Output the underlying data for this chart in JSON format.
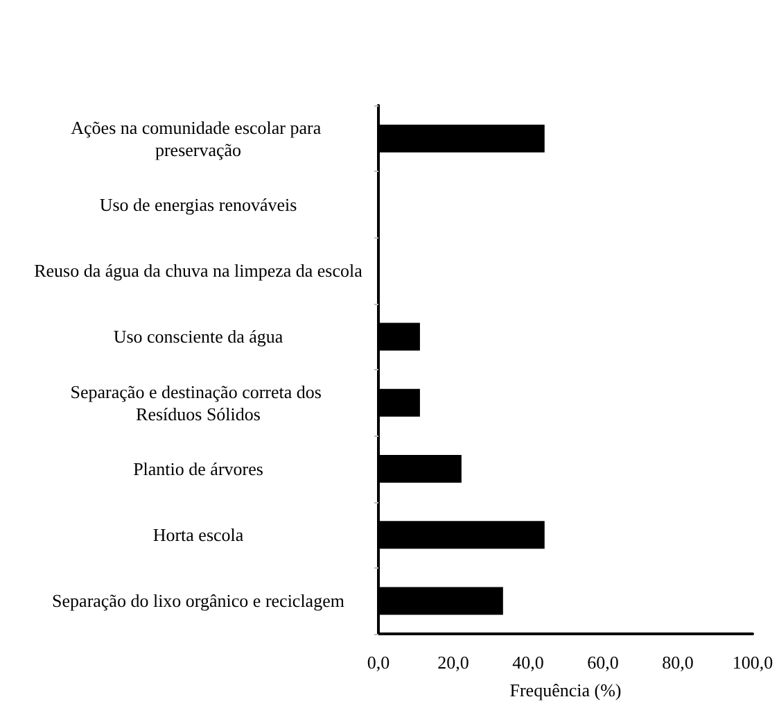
{
  "chart_data": {
    "type": "bar",
    "orientation": "horizontal",
    "xlabel": "Frequência (%)",
    "categories": [
      "Ações na comunidade escolar para preservação",
      "Uso de energias renováveis",
      "Reuso da água da chuva na limpeza da escola",
      "Uso consciente da água",
      "Separação e destinação correta dos Resíduos Sólidos",
      "Plantio de árvores",
      "Horta escola",
      "Separação do lixo orgânico e reciclagem"
    ],
    "values": [
      44.4,
      0,
      0,
      11.1,
      11.1,
      22.2,
      44.4,
      33.3
    ],
    "color": "#000000",
    "xlim": [
      0,
      100
    ],
    "xticks": [
      {
        "value": 0,
        "label": "0,0"
      },
      {
        "value": 20,
        "label": "20,0"
      },
      {
        "value": 40,
        "label": "40,0"
      },
      {
        "value": 60,
        "label": "60,0"
      },
      {
        "value": 80,
        "label": "80,0"
      },
      {
        "value": 100,
        "label": "100,0"
      }
    ],
    "grid": false
  }
}
